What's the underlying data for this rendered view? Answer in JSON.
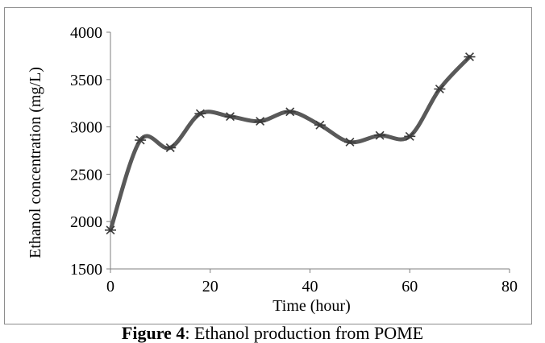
{
  "chart_data": {
    "type": "line",
    "xlabel": "Time (hour)",
    "ylabel": "Ethanol concentration (mg/L)",
    "xlim": [
      0,
      80
    ],
    "ylim": [
      1500,
      4000
    ],
    "x_ticks": [
      "0",
      "20",
      "40",
      "60",
      "80"
    ],
    "y_ticks": [
      "1500",
      "2000",
      "2500",
      "3000",
      "3500",
      "4000"
    ],
    "grid": false,
    "legend": "none",
    "series": [
      {
        "x": [
          0,
          6,
          12,
          18,
          24,
          30,
          36,
          42,
          48,
          54,
          60,
          66,
          72
        ],
        "y": [
          1910,
          2860,
          2780,
          3140,
          3110,
          3060,
          3160,
          3020,
          2840,
          2910,
          2900,
          3400,
          3740
        ],
        "color": "#595959",
        "marker": "asterisk"
      }
    ]
  },
  "caption": {
    "label": "Figure 4",
    "text": "Ethanol production from POME"
  }
}
